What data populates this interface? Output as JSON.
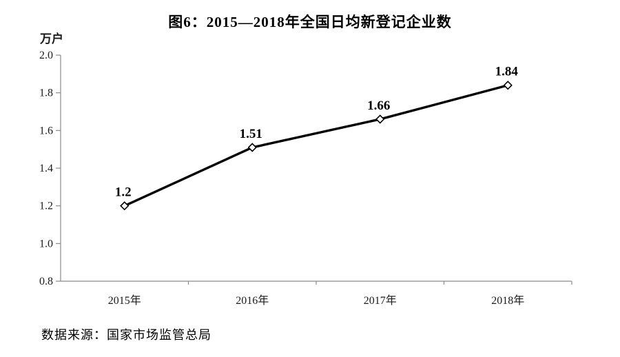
{
  "title": "图6：2015—2018年全国日均新登记企业数",
  "y_axis_unit": "万户",
  "source": "数据来源：国家市场监管总局",
  "chart_data": {
    "type": "line",
    "title": "图6：2015—2018年全国日均新登记企业数",
    "ylabel": "万户",
    "xlabel": "",
    "categories": [
      "2015年",
      "2016年",
      "2017年",
      "2018年"
    ],
    "values": [
      1.2,
      1.51,
      1.66,
      1.84
    ],
    "point_labels": [
      "1.2",
      "1.51",
      "1.66",
      "1.84"
    ],
    "ylim": [
      0.8,
      2.0
    ],
    "ytick_step": 0.2,
    "ytick_labels": [
      "0.8",
      "1.0",
      "1.2",
      "1.4",
      "1.6",
      "1.8",
      "2.0"
    ],
    "grid": false,
    "legend": "none",
    "line_color": "#000000",
    "marker": "open-diamond",
    "marker_fill": "#ffffff",
    "axis_color": "#8a8a8a",
    "source": "数据来源：国家市场监管总局"
  }
}
